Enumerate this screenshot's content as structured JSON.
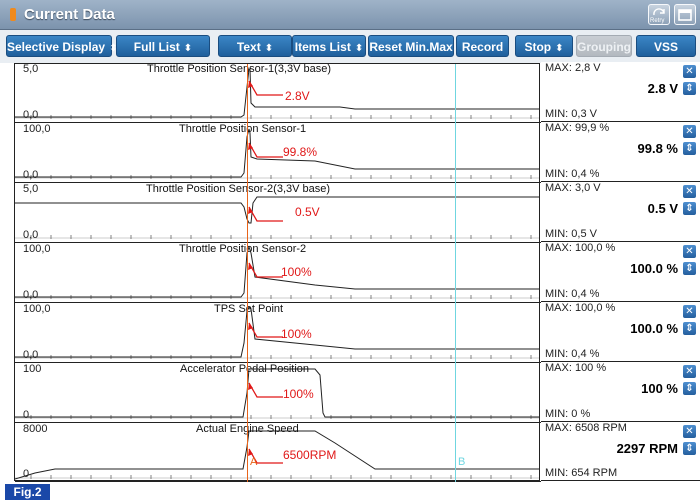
{
  "window": {
    "title": "Current Data",
    "retry_label": "Retry"
  },
  "toolbar": {
    "buttons": [
      {
        "label": "Selective Display",
        "arrows": "⬍"
      },
      {
        "label": "Full List",
        "arrows": "⬍"
      },
      {
        "label": "Text",
        "arrows": "⬍"
      },
      {
        "label": "Items List",
        "arrows": "⬍"
      },
      {
        "label": "Reset Min.Max"
      },
      {
        "label": "Record"
      },
      {
        "label": "Stop",
        "arrows": "⬍"
      },
      {
        "label": "Grouping",
        "disabled": true
      },
      {
        "label": "VSS"
      }
    ]
  },
  "sensors": [
    {
      "name": "Throttle Position Sensor-1(3,3V base)",
      "ymax": "5,0",
      "ymin": "0,0",
      "max": "MAX:   2,8 V",
      "current": "2.8 V",
      "min": "MIN:   0,3 V",
      "annotation": "2.8V"
    },
    {
      "name": "Throttle Position Sensor-1",
      "ymax": "100,0",
      "ymin": "0,0",
      "max": "MAX:  99,9 %",
      "current": "99.8 %",
      "min": "MIN:   0,4 %",
      "annotation": "99.8%"
    },
    {
      "name": "Throttle Position Sensor-2(3,3V base)",
      "ymax": "5,0",
      "ymin": "0,0",
      "max": "MAX:   3,0 V",
      "current": "0.5 V",
      "min": "MIN:   0,5 V",
      "annotation": "0.5V"
    },
    {
      "name": "Throttle Position Sensor-2",
      "ymax": "100,0",
      "ymin": "0,0",
      "max": "MAX: 100,0 %",
      "current": "100.0 %",
      "min": "MIN:   0,4 %",
      "annotation": "100%"
    },
    {
      "name": "TPS Set Point",
      "ymax": "100,0",
      "ymin": "0,0",
      "max": "MAX: 100,0 %",
      "current": "100.0 %",
      "min": "MIN:   0,4 %",
      "annotation": "100%"
    },
    {
      "name": "Accelerator Pedal Position",
      "ymax": "100",
      "ymin": "0",
      "max": "MAX:    100 %",
      "current": "100 %",
      "min": "MIN:      0 %",
      "annotation": "100%"
    },
    {
      "name": "Actual Engine Speed",
      "ymax": "8000",
      "ymin": "0",
      "max": "MAX:  6508 RPM",
      "current": "2297 RPM",
      "min": "MIN:   654 RPM",
      "annotation": "6500RPM"
    }
  ],
  "cursors": {
    "a_label": "A",
    "b_label": "B",
    "a_color": "#e8641a",
    "b_color": "#6fd6e0"
  },
  "figure_label": "Fig.2",
  "colors": {
    "annotation": "#e01818",
    "button": "#2a6fb0"
  }
}
